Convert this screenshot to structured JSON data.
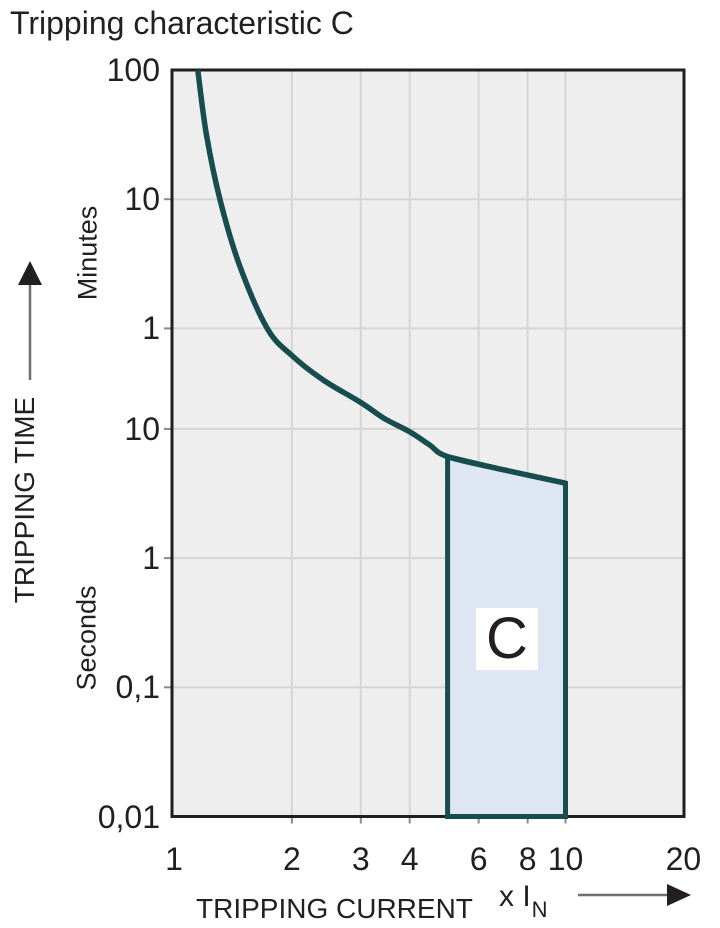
{
  "title": "Tripping characteristic C",
  "colors": {
    "curve": "#184d50",
    "region_fill": "#dee5f3",
    "region_label_background": "#ffffff",
    "plot_background": "#efeeee",
    "gridline": "#d5d5d5",
    "frame": "#1f1f1f",
    "tick_stub": "#8a8a8a",
    "text": "#231f20",
    "arrow": "#6f6f6f"
  },
  "chart_data": {
    "type": "line",
    "title": "Tripping characteristic C",
    "x_axis": {
      "label": "TRIPPING CURRENT",
      "unit_prefix": "x I",
      "unit_sub": "N",
      "scale": "log",
      "range": [
        1,
        20
      ],
      "ticks": [
        {
          "value": 1,
          "label": "1"
        },
        {
          "value": 2,
          "label": "2"
        },
        {
          "value": 3,
          "label": "3"
        },
        {
          "value": 4,
          "label": "4"
        },
        {
          "value": 6,
          "label": "6"
        },
        {
          "value": 8,
          "label": "8"
        },
        {
          "value": 10,
          "label": "10"
        },
        {
          "value": 20,
          "label": "20"
        }
      ],
      "gridline_values": [
        2,
        3,
        4,
        6,
        8,
        10
      ]
    },
    "y_axis": {
      "label": "TRIPPING TIME",
      "scale": "log",
      "range_seconds": [
        0.01,
        6000
      ],
      "sections": [
        {
          "name": "Minutes",
          "ticks": [
            {
              "seconds": 6000,
              "label": "100"
            },
            {
              "seconds": 600,
              "label": "10"
            },
            {
              "seconds": 60,
              "label": "1"
            }
          ]
        },
        {
          "name": "Seconds",
          "ticks": [
            {
              "seconds": 10,
              "label": "10"
            },
            {
              "seconds": 1,
              "label": "1"
            },
            {
              "seconds": 0.1,
              "label": "0,1"
            },
            {
              "seconds": 0.01,
              "label": "0,01"
            }
          ]
        }
      ],
      "gridline_seconds": [
        600,
        60,
        10,
        1,
        0.1
      ]
    },
    "series": [
      {
        "name": "tripping-curve",
        "points_x_vs_seconds": [
          [
            1.15,
            6000
          ],
          [
            1.21,
            1900
          ],
          [
            1.31,
            600
          ],
          [
            1.47,
            185
          ],
          [
            1.73,
            60
          ],
          [
            2.0,
            37
          ],
          [
            2.4,
            24
          ],
          [
            3.0,
            16
          ],
          [
            3.45,
            12
          ],
          [
            4.0,
            9.5
          ],
          [
            4.5,
            7.5
          ],
          [
            5.0,
            6.1
          ],
          [
            7.0,
            4.8
          ],
          [
            10.0,
            3.8
          ]
        ]
      }
    ],
    "region": {
      "label": "C",
      "x_range": [
        5,
        10
      ],
      "outline_x_vs_seconds": [
        [
          5,
          6.1
        ],
        [
          7,
          4.8
        ],
        [
          10,
          3.8
        ],
        [
          10,
          0.01
        ],
        [
          5,
          0.01
        ]
      ]
    }
  }
}
